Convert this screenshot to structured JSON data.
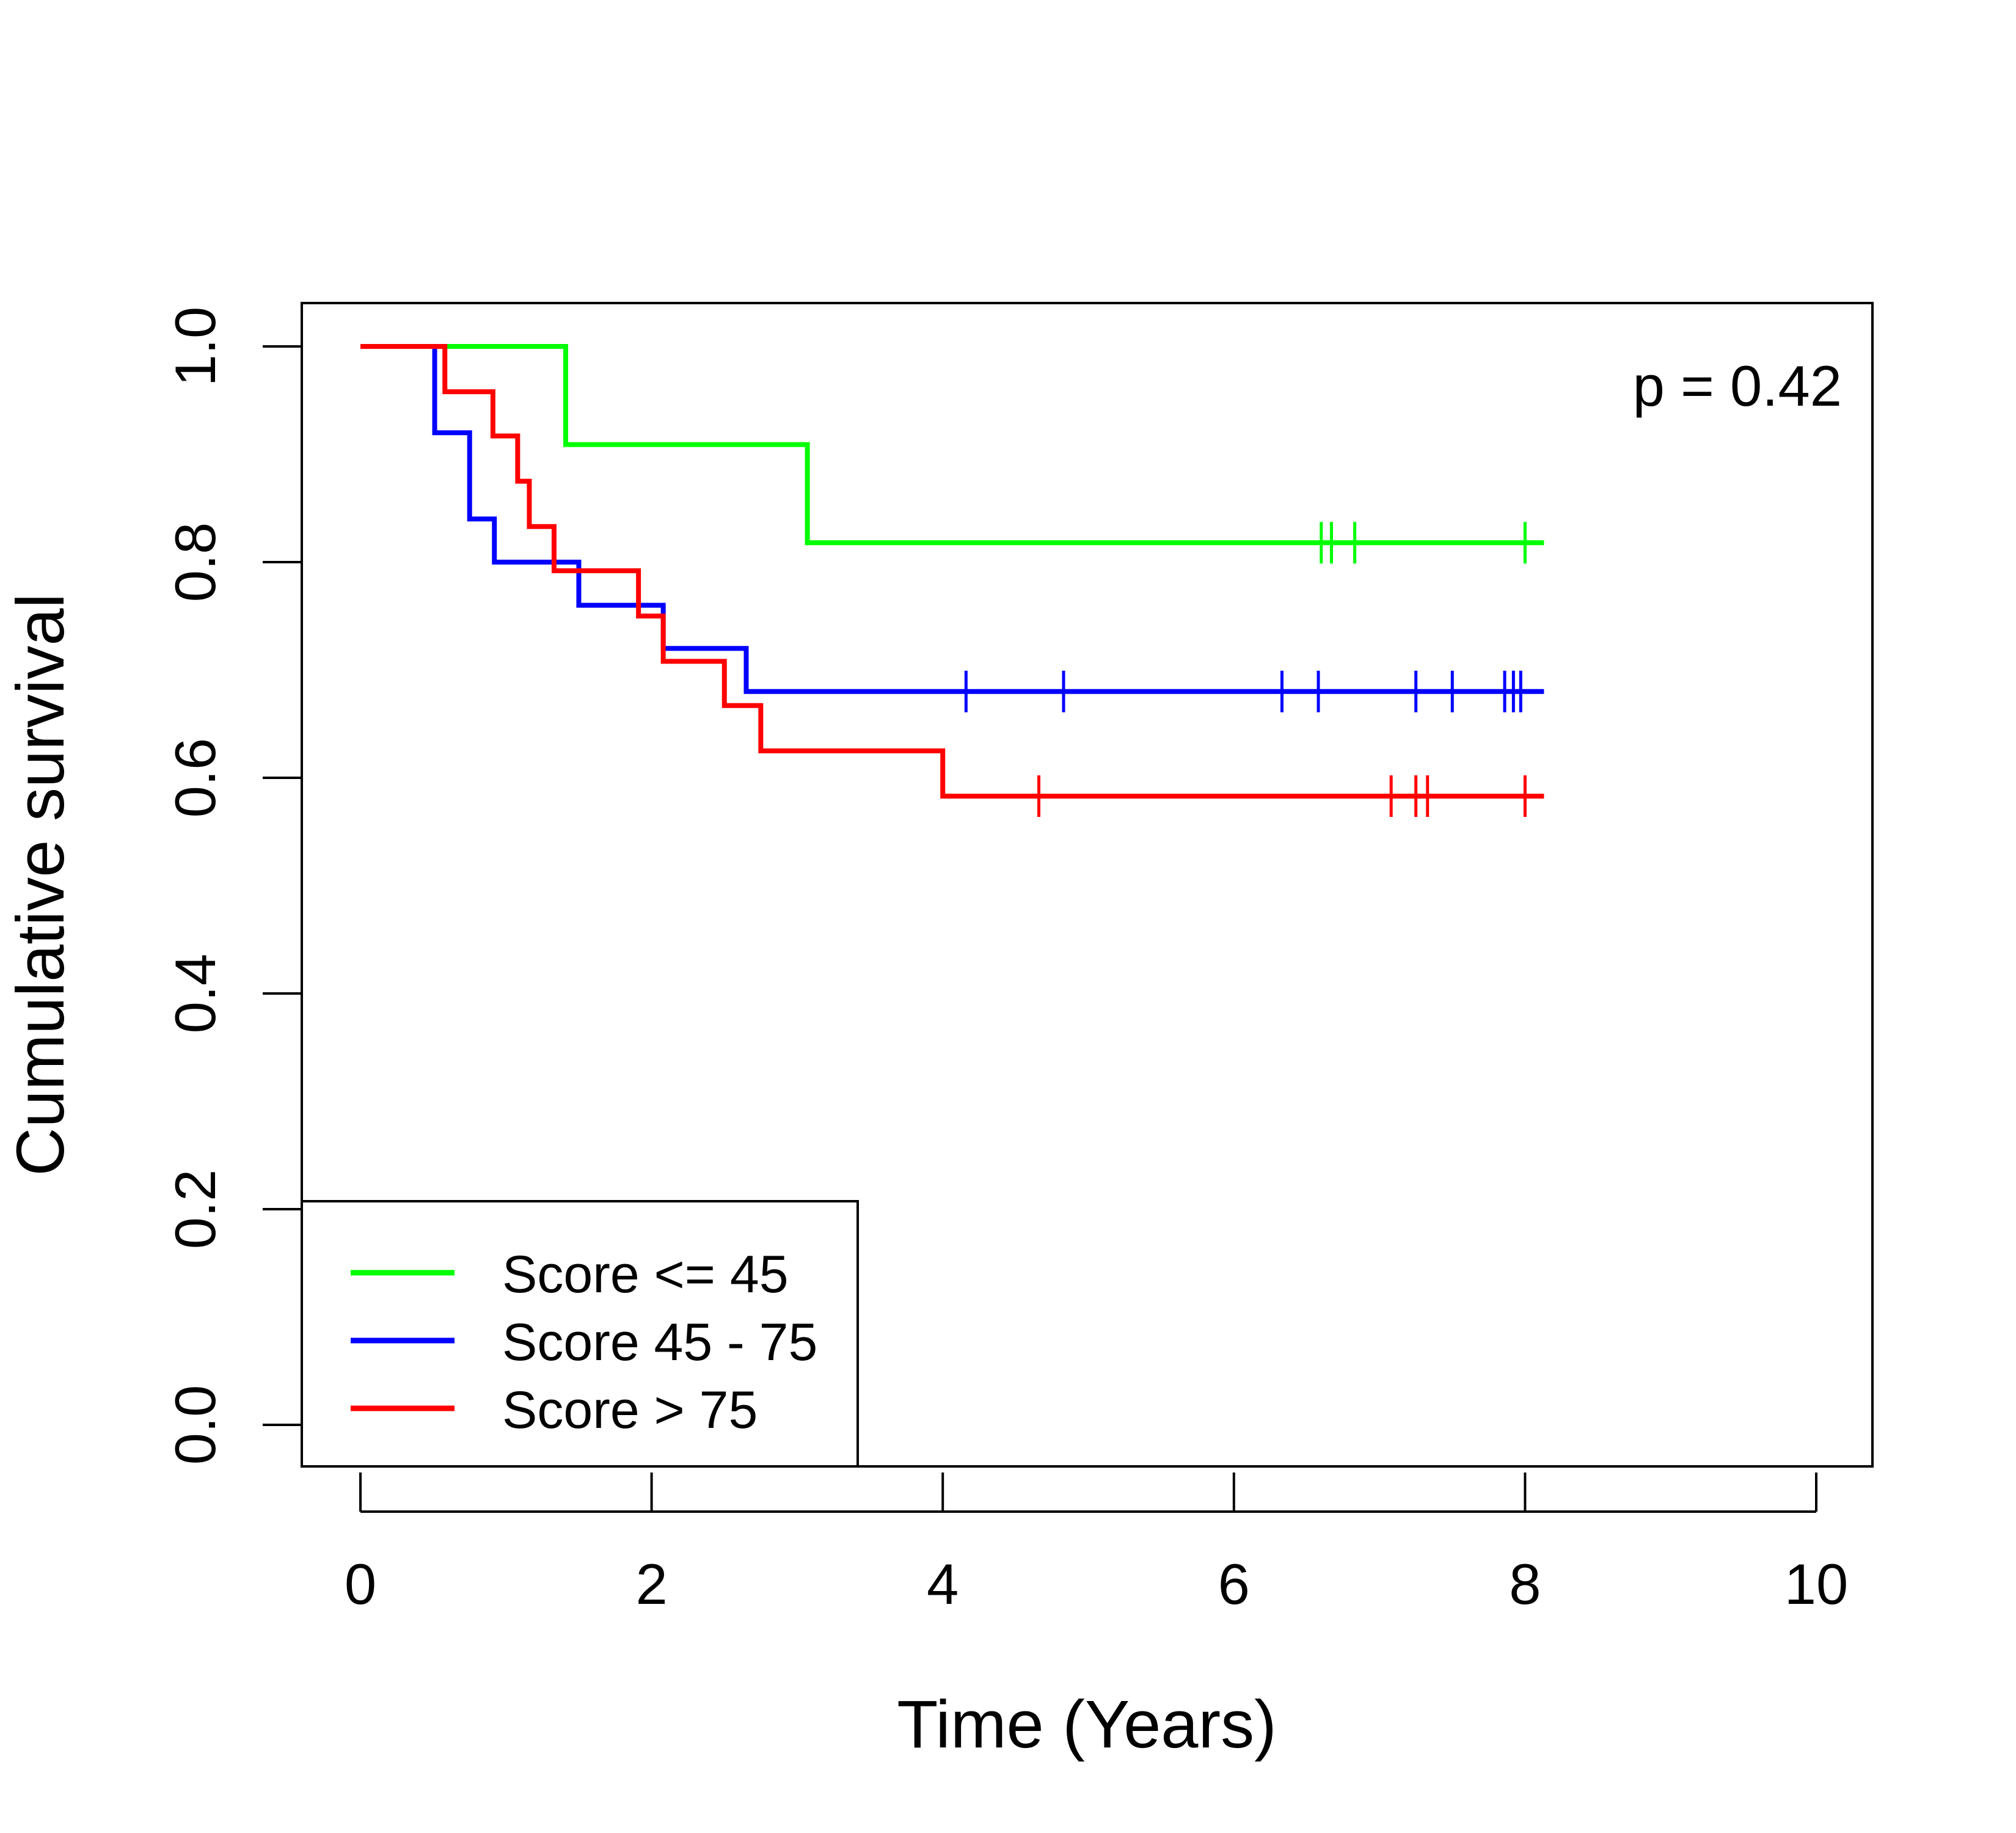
{
  "chart_data": {
    "type": "line",
    "subtype": "kaplan-meier step",
    "title": "",
    "xlabel": "Time (Years)",
    "ylabel": "Cumulative survival",
    "xlim": [
      0,
      10
    ],
    "ylim": [
      0,
      1
    ],
    "x_ticks": [
      0,
      2,
      4,
      6,
      8,
      10
    ],
    "y_ticks": [
      0.0,
      0.2,
      0.4,
      0.6,
      0.8,
      1.0
    ],
    "x_tick_labels": [
      "0",
      "2",
      "4",
      "6",
      "8",
      "10"
    ],
    "y_tick_labels": [
      "0.0",
      "0.2",
      "0.4",
      "0.6",
      "0.8",
      "1.0"
    ],
    "grid": false,
    "legend_position": "bottom-left",
    "annotation": "p = 0.42",
    "series": [
      {
        "name": "Score <= 45",
        "color": "#00ff00",
        "steps": [
          [
            0,
            1.0
          ],
          [
            1.41,
            0.909
          ],
          [
            3.07,
            0.818
          ],
          [
            8.13,
            0.818
          ]
        ],
        "censored": [
          [
            6.6,
            0.818
          ],
          [
            6.67,
            0.818
          ],
          [
            6.83,
            0.818
          ],
          [
            8.0,
            0.818
          ]
        ]
      },
      {
        "name": "Score 45 - 75",
        "color": "#0000ff",
        "steps": [
          [
            0,
            1.0
          ],
          [
            0.51,
            0.92
          ],
          [
            0.75,
            0.84
          ],
          [
            0.92,
            0.8
          ],
          [
            1.5,
            0.76
          ],
          [
            2.08,
            0.72
          ],
          [
            2.65,
            0.68
          ],
          [
            8.13,
            0.68
          ]
        ],
        "censored": [
          [
            4.16,
            0.68
          ],
          [
            4.83,
            0.68
          ],
          [
            6.33,
            0.68
          ],
          [
            6.58,
            0.68
          ],
          [
            7.25,
            0.68
          ],
          [
            7.5,
            0.68
          ],
          [
            7.86,
            0.68
          ],
          [
            7.92,
            0.68
          ],
          [
            7.97,
            0.68
          ]
        ]
      },
      {
        "name": "Score > 75",
        "color": "#ff0000",
        "steps": [
          [
            0,
            1.0
          ],
          [
            0.58,
            0.958
          ],
          [
            0.91,
            0.917
          ],
          [
            1.08,
            0.875
          ],
          [
            1.16,
            0.833
          ],
          [
            1.33,
            0.792
          ],
          [
            1.91,
            0.75
          ],
          [
            2.08,
            0.708
          ],
          [
            2.5,
            0.667
          ],
          [
            2.75,
            0.625
          ],
          [
            4.0,
            0.583
          ],
          [
            8.13,
            0.583
          ]
        ],
        "censored": [
          [
            4.66,
            0.583
          ],
          [
            7.08,
            0.583
          ],
          [
            7.25,
            0.583
          ],
          [
            7.33,
            0.583
          ],
          [
            8.0,
            0.583
          ]
        ]
      }
    ]
  }
}
